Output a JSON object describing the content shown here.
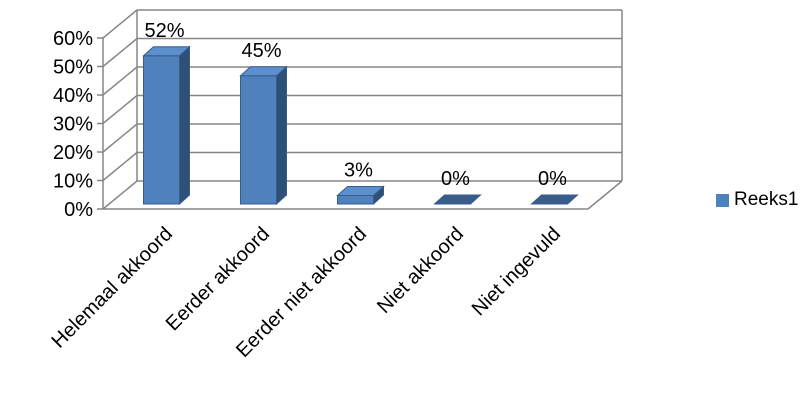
{
  "chart_data": {
    "type": "bar",
    "style": "3d-column",
    "categories": [
      "Helemaal akkoord",
      "Eerder akkoord",
      "Eerder niet akkoord",
      "Niet akkoord",
      "Niet ingevuld"
    ],
    "series": [
      {
        "name": "Reeks1",
        "values": [
          52,
          45,
          3,
          0,
          0
        ],
        "color": "#4F81BD"
      }
    ],
    "data_labels": [
      "52%",
      "45%",
      "3%",
      "0%",
      "0%"
    ],
    "y_ticks": [
      "0%",
      "10%",
      "20%",
      "30%",
      "40%",
      "50%",
      "60%"
    ],
    "ylim": [
      0,
      60
    ],
    "grid": true,
    "legend_position": "right"
  }
}
